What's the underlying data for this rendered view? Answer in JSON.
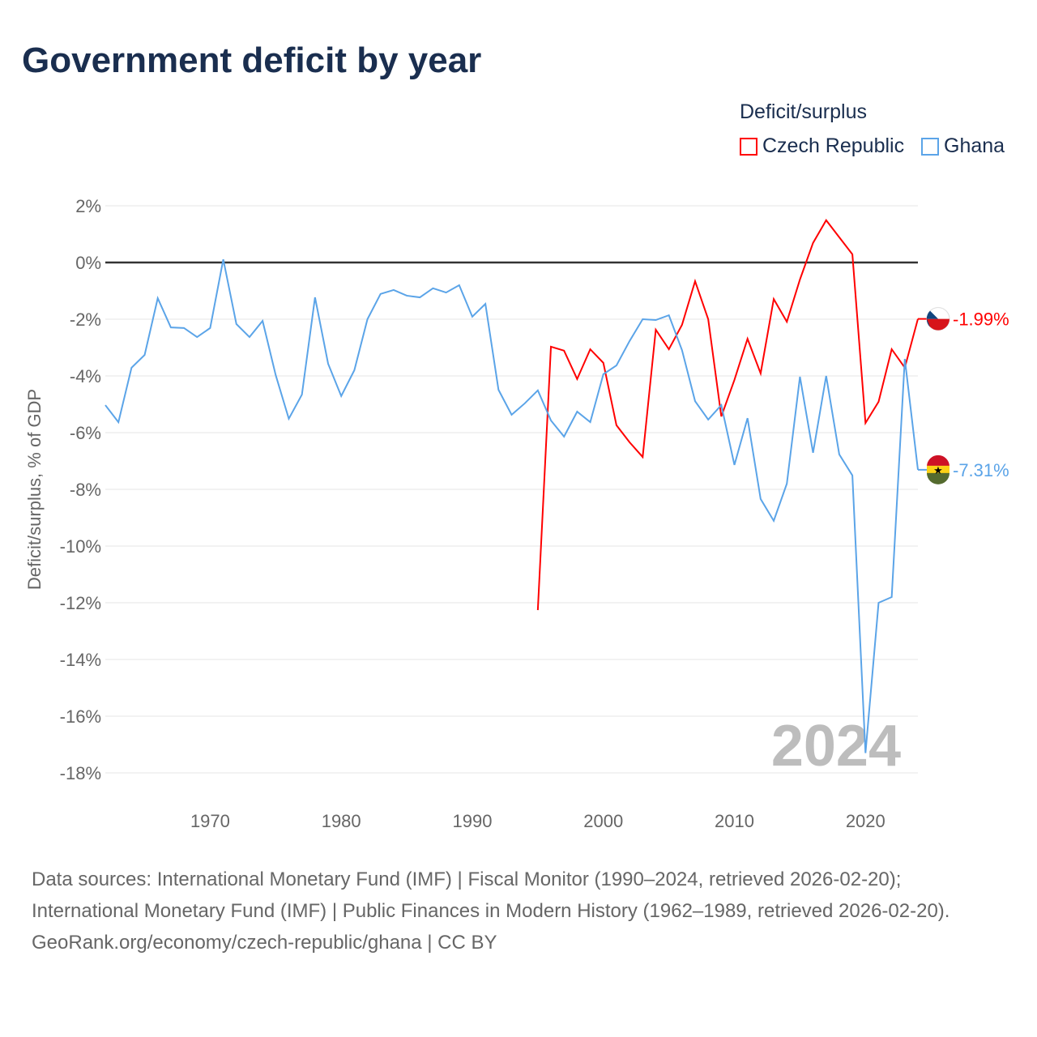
{
  "title": "Government deficit by year",
  "legend": {
    "title": "Deficit/surplus",
    "items": [
      {
        "name": "Czech Republic",
        "color": "#ff0000"
      },
      {
        "name": "Ghana",
        "color": "#5ba4e8"
      }
    ]
  },
  "sources": {
    "line1": "Data sources: International Monetary Fund (IMF) | Fiscal Monitor (1990–2024, retrieved 2026-02-20); International Monetary Fund (IMF) | Public Finances in Modern History (1962–1989, retrieved 2026-02-20).",
    "line2": "GeoRank.org/economy/czech-republic/ghana | CC BY"
  },
  "chart_data": {
    "type": "line",
    "title": "Government deficit by year",
    "ylabel": "Deficit/surplus, % of GDP",
    "xlim": [
      1962,
      2024
    ],
    "ylim": [
      -18,
      2
    ],
    "yticks": [
      2,
      0,
      -2,
      -4,
      -6,
      -8,
      -10,
      -12,
      -14,
      -16,
      -18
    ],
    "ytick_labels": [
      "2%",
      "0%",
      "-2%",
      "-4%",
      "-6%",
      "-8%",
      "-10%",
      "-12%",
      "-14%",
      "-16%",
      "-18%"
    ],
    "xticks": [
      1970,
      1980,
      1990,
      2000,
      2010,
      2020
    ],
    "xtick_labels": [
      "1970",
      "1980",
      "1990",
      "2000",
      "2010",
      "2020"
    ],
    "year_watermark": "2024",
    "series": [
      {
        "name": "Czech Republic",
        "color": "#ff0000",
        "end_label": "-1.99%",
        "start_year": 1995,
        "values": [
          -12.26,
          -2.97,
          -3.11,
          -4.11,
          -3.06,
          -3.54,
          -5.74,
          -6.34,
          -6.86,
          -2.37,
          -3.06,
          -2.2,
          -0.66,
          -2.0,
          -5.43,
          -4.14,
          -2.69,
          -3.91,
          -1.29,
          -2.09,
          -0.6,
          0.69,
          1.49,
          0.89,
          0.29,
          -5.66,
          -4.91,
          -3.06,
          -3.71,
          -1.99
        ]
      },
      {
        "name": "Ghana",
        "color": "#5ba4e8",
        "end_label": "-7.31%",
        "start_year": 1962,
        "values": [
          -5.03,
          -5.63,
          -3.71,
          -3.26,
          -1.26,
          -2.29,
          -2.31,
          -2.63,
          -2.31,
          0.11,
          -2.17,
          -2.63,
          -2.06,
          -3.97,
          -5.51,
          -4.66,
          -1.23,
          -3.57,
          -4.71,
          -3.8,
          -2.0,
          -1.11,
          -0.97,
          -1.17,
          -1.23,
          -0.91,
          -1.06,
          -0.8,
          -1.91,
          -1.46,
          -4.49,
          -5.37,
          -4.97,
          -4.51,
          -5.57,
          -6.14,
          -5.26,
          -5.63,
          -3.94,
          -3.63,
          -2.77,
          -2.0,
          -2.03,
          -1.86,
          -3.09,
          -4.89,
          -5.54,
          -5.03,
          -7.14,
          -5.49,
          -8.34,
          -9.11,
          -7.8,
          -4.03,
          -6.71,
          -4.0,
          -6.77,
          -7.51,
          -17.3,
          -12.0,
          -11.8,
          -3.4,
          -7.31
        ]
      }
    ]
  }
}
